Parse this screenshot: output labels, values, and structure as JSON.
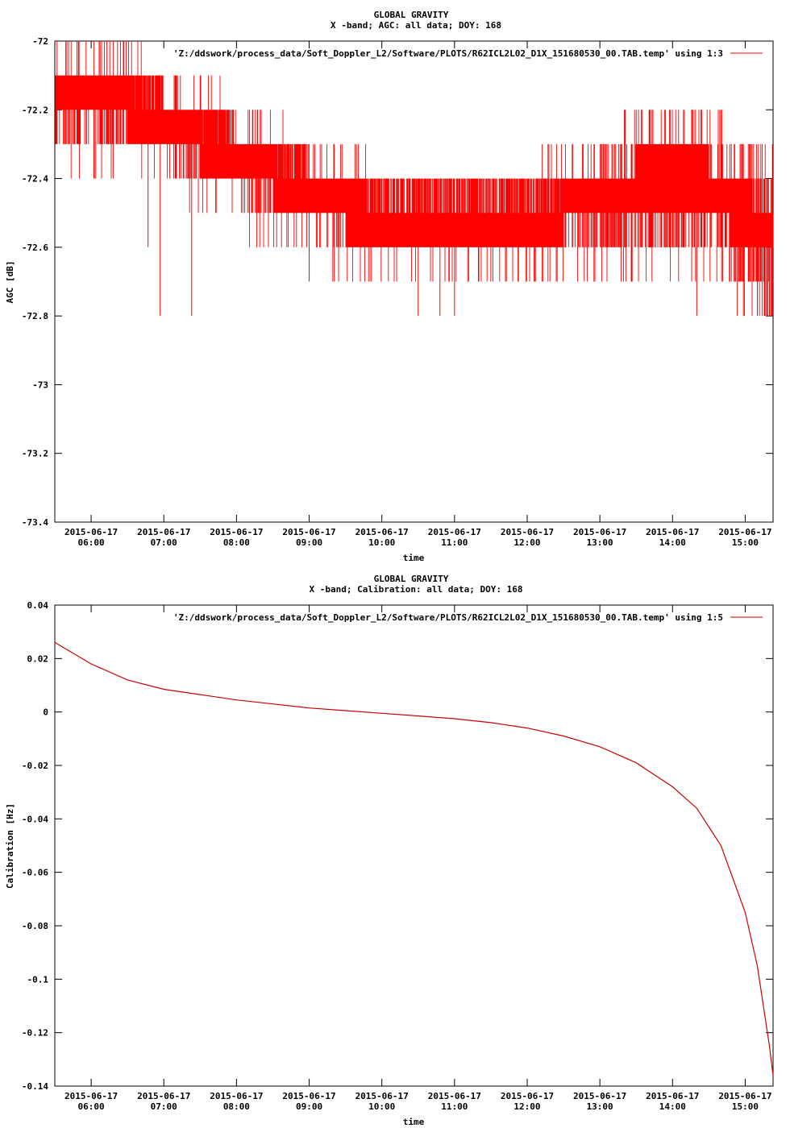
{
  "chart_data": [
    {
      "type": "line",
      "title": "GLOBAL GRAVITY",
      "subtitle": "X -band; AGC: all data; DOY: 168",
      "xlabel": "time",
      "ylabel": "AGC [dB]",
      "ylim": [
        -73.4,
        -72
      ],
      "yticks": [
        -72,
        -72.2,
        -72.4,
        -72.6,
        -72.8,
        -73,
        -73.2,
        -73.4
      ],
      "ytick_labels": [
        "-72",
        "-72.2",
        "-72.4",
        "-72.6",
        "-72.8",
        "-73",
        "-73.2",
        "-73.4"
      ],
      "xlim": [
        "2015-06-17 05:30",
        "2015-06-17 15:23"
      ],
      "xticks": [
        "2015-06-17 06:00",
        "2015-06-17 07:00",
        "2015-06-17 08:00",
        "2015-06-17 09:00",
        "2015-06-17 10:00",
        "2015-06-17 11:00",
        "2015-06-17 12:00",
        "2015-06-17 13:00",
        "2015-06-17 14:00",
        "2015-06-17 15:00"
      ],
      "xtick_labels": [
        [
          "2015-06-17",
          "06:00"
        ],
        [
          "2015-06-17",
          "07:00"
        ],
        [
          "2015-06-17",
          "08:00"
        ],
        [
          "2015-06-17",
          "09:00"
        ],
        [
          "2015-06-17",
          "10:00"
        ],
        [
          "2015-06-17",
          "11:00"
        ],
        [
          "2015-06-17",
          "12:00"
        ],
        [
          "2015-06-17",
          "13:00"
        ],
        [
          "2015-06-17",
          "14:00"
        ],
        [
          "2015-06-17",
          "15:00"
        ]
      ],
      "legend": "top-right",
      "series": [
        {
          "name": "'Z:/ddswork/process_data/Soft_Doppler_L2/Software/PLOTS/R62ICL2L02_D1X_151680530_00.TAB.temp' using 1:3",
          "color": "#ff0000",
          "x": [
            "2015-06-17 05:30",
            "2015-06-17 06:30",
            "2015-06-17 07:30",
            "2015-06-17 08:30",
            "2015-06-17 09:30",
            "2015-06-17 10:30",
            "2015-06-17 11:30",
            "2015-06-17 12:30",
            "2015-06-17 13:30",
            "2015-06-17 14:30",
            "2015-06-17 15:23"
          ],
          "band_top": [
            -72.1,
            -72.1,
            -72.2,
            -72.3,
            -72.4,
            -72.5,
            -72.5,
            -72.4,
            -72.3,
            -72.3,
            -72.4
          ],
          "band_bottom": [
            -72.3,
            -72.3,
            -72.4,
            -72.5,
            -72.6,
            -72.6,
            -72.6,
            -72.6,
            -72.6,
            -72.6,
            -72.8
          ],
          "y": [
            -72.2,
            -72.2,
            -72.3,
            -72.4,
            -72.5,
            -72.55,
            -72.55,
            -72.45,
            -72.45,
            -72.45,
            -72.6
          ],
          "outlier_spikes": [
            {
              "x": "2015-06-17 05:40",
              "y": -72.0
            },
            {
              "x": "2015-06-17 05:50",
              "y": -72.0
            },
            {
              "x": "2015-06-17 06:27",
              "y": -72.0
            },
            {
              "x": "2015-06-17 06:47",
              "y": -72.6
            },
            {
              "x": "2015-06-17 06:57",
              "y": -72.8
            },
            {
              "x": "2015-06-17 07:23",
              "y": -72.8
            },
            {
              "x": "2015-06-17 07:30",
              "y": -72.1
            },
            {
              "x": "2015-06-17 09:00",
              "y": -72.7
            },
            {
              "x": "2015-06-17 10:30",
              "y": -72.8
            },
            {
              "x": "2015-06-17 10:48",
              "y": -72.8
            },
            {
              "x": "2015-06-17 11:00",
              "y": -72.8
            },
            {
              "x": "2015-06-17 11:30",
              "y": -72.7
            },
            {
              "x": "2015-06-17 13:30",
              "y": -72.2
            },
            {
              "x": "2015-06-17 14:20",
              "y": -72.8
            },
            {
              "x": "2015-06-17 14:40",
              "y": -72.2
            },
            {
              "x": "2015-06-17 15:10",
              "y": -72.8
            },
            {
              "x": "2015-06-17 15:20",
              "y": -72.8
            }
          ]
        }
      ]
    },
    {
      "type": "line",
      "title": "GLOBAL GRAVITY",
      "subtitle": "X -band; Calibration: all data; DOY: 168",
      "xlabel": "time",
      "ylabel": "Calibration [Hz]",
      "ylim": [
        -0.14,
        0.04
      ],
      "yticks": [
        0.04,
        0.02,
        0,
        -0.02,
        -0.04,
        -0.06,
        -0.08,
        -0.1,
        -0.12,
        -0.14
      ],
      "ytick_labels": [
        "0.04",
        "0.02",
        "0",
        "-0.02",
        "-0.04",
        "-0.06",
        "-0.08",
        "-0.1",
        "-0.12",
        "-0.14"
      ],
      "xlim": [
        "2015-06-17 05:30",
        "2015-06-17 15:23"
      ],
      "xticks": [
        "2015-06-17 06:00",
        "2015-06-17 07:00",
        "2015-06-17 08:00",
        "2015-06-17 09:00",
        "2015-06-17 10:00",
        "2015-06-17 11:00",
        "2015-06-17 12:00",
        "2015-06-17 13:00",
        "2015-06-17 14:00",
        "2015-06-17 15:00"
      ],
      "xtick_labels": [
        [
          "2015-06-17",
          "06:00"
        ],
        [
          "2015-06-17",
          "07:00"
        ],
        [
          "2015-06-17",
          "08:00"
        ],
        [
          "2015-06-17",
          "09:00"
        ],
        [
          "2015-06-17",
          "10:00"
        ],
        [
          "2015-06-17",
          "11:00"
        ],
        [
          "2015-06-17",
          "12:00"
        ],
        [
          "2015-06-17",
          "13:00"
        ],
        [
          "2015-06-17",
          "14:00"
        ],
        [
          "2015-06-17",
          "15:00"
        ]
      ],
      "legend": "top-right",
      "series": [
        {
          "name": "'Z:/ddswork/process_data/Soft_Doppler_L2/Software/PLOTS/R62ICL2L02_D1X_151680530_00.TAB.temp' using 1:5",
          "color": "#cc0000",
          "x": [
            "2015-06-17 05:30",
            "2015-06-17 06:00",
            "2015-06-17 06:30",
            "2015-06-17 07:00",
            "2015-06-17 07:30",
            "2015-06-17 08:00",
            "2015-06-17 08:30",
            "2015-06-17 09:00",
            "2015-06-17 09:30",
            "2015-06-17 10:00",
            "2015-06-17 10:30",
            "2015-06-17 11:00",
            "2015-06-17 11:30",
            "2015-06-17 12:00",
            "2015-06-17 12:30",
            "2015-06-17 13:00",
            "2015-06-17 13:30",
            "2015-06-17 14:00",
            "2015-06-17 14:20",
            "2015-06-17 14:40",
            "2015-06-17 15:00",
            "2015-06-17 15:10",
            "2015-06-17 15:20",
            "2015-06-17 15:23"
          ],
          "y": [
            0.026,
            0.018,
            0.012,
            0.0085,
            0.0065,
            0.0045,
            0.003,
            0.0015,
            0.0005,
            -0.0005,
            -0.0015,
            -0.0025,
            -0.004,
            -0.006,
            -0.009,
            -0.013,
            -0.019,
            -0.028,
            -0.036,
            -0.05,
            -0.075,
            -0.095,
            -0.125,
            -0.136
          ]
        }
      ]
    }
  ]
}
